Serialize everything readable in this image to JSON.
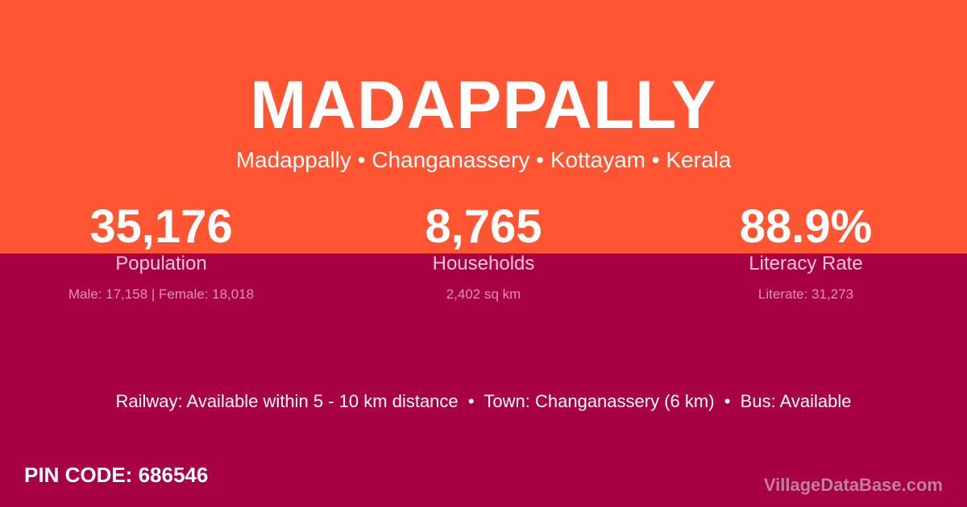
{
  "colors": {
    "top": "#FF5533",
    "bottom": "#A80044"
  },
  "title": "MADAPPALLY",
  "subtitle": "Madappally • Changanassery • Kottayam • Kerala",
  "stats": [
    {
      "value": "35,176",
      "label": "Population",
      "detail": "Male: 17,158 | Female: 18,018"
    },
    {
      "value": "8,765",
      "label": "Households",
      "detail": "2,402 sq km"
    },
    {
      "value": "88.9%",
      "label": "Literacy Rate",
      "detail": "Literate: 31,273"
    }
  ],
  "info": "Railway: Available within 5 - 10 km distance  •  Town: Changanassery (6 km)  •  Bus: Available",
  "pin": "PIN CODE: 686546",
  "brand": "VillageDataBase.com"
}
